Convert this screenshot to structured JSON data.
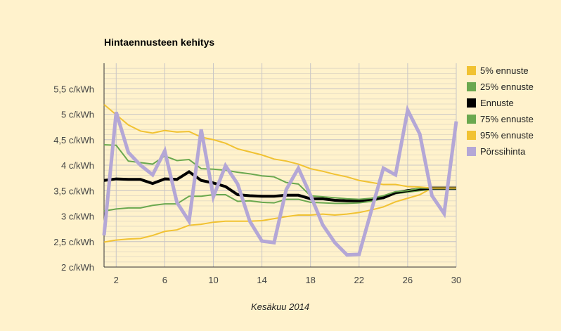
{
  "chart_data": {
    "type": "line",
    "title": "Hintaennusteen kehitys",
    "xlabel": "Kesäkuu 2014",
    "ylabel": "",
    "xlim": [
      1,
      30
    ],
    "ylim": [
      2,
      6
    ],
    "xticks": [
      "2",
      "6",
      "10",
      "14",
      "18",
      "22",
      "26",
      "30"
    ],
    "xtick_values": [
      2,
      6,
      10,
      14,
      18,
      22,
      26,
      30
    ],
    "yticks": [
      "2 c/kWh",
      "2,5 c/kWh",
      "3 c/kWh",
      "3,5 c/kWh",
      "4 c/kWh",
      "4,5 c/kWh",
      "5 c/kWh",
      "5,5 c/kWh"
    ],
    "ytick_values": [
      2,
      2.5,
      3,
      3.5,
      4,
      4.5,
      5,
      5.5
    ],
    "grid": true,
    "legend_position": "right",
    "x": [
      1,
      2,
      3,
      4,
      5,
      6,
      7,
      8,
      9,
      10,
      11,
      12,
      13,
      14,
      15,
      16,
      17,
      18,
      19,
      20,
      21,
      22,
      23,
      24,
      25,
      26,
      27,
      28,
      29,
      30
    ],
    "series": [
      {
        "name": "5% ennuste",
        "color": "#f1c232",
        "width": 2,
        "values": [
          2.49,
          2.53,
          2.55,
          2.56,
          2.62,
          2.7,
          2.73,
          2.82,
          2.84,
          2.88,
          2.9,
          2.9,
          2.9,
          2.91,
          2.95,
          2.99,
          3.02,
          3.02,
          3.04,
          3.02,
          3.04,
          3.07,
          3.12,
          3.18,
          3.28,
          3.35,
          3.42,
          3.55,
          3.55,
          3.55
        ]
      },
      {
        "name": "25% ennuste",
        "color": "#6aa84f",
        "width": 2,
        "values": [
          3.1,
          3.14,
          3.16,
          3.16,
          3.21,
          3.24,
          3.24,
          3.39,
          3.39,
          3.42,
          3.42,
          3.29,
          3.3,
          3.27,
          3.26,
          3.33,
          3.33,
          3.27,
          3.26,
          3.25,
          3.25,
          3.26,
          3.29,
          3.35,
          3.44,
          3.47,
          3.5,
          3.53,
          3.53,
          3.53
        ]
      },
      {
        "name": "Ennuste",
        "color": "#000000",
        "width": 4,
        "values": [
          3.7,
          3.73,
          3.72,
          3.72,
          3.64,
          3.73,
          3.72,
          3.87,
          3.7,
          3.65,
          3.58,
          3.42,
          3.4,
          3.39,
          3.39,
          3.41,
          3.41,
          3.34,
          3.34,
          3.31,
          3.3,
          3.3,
          3.33,
          3.36,
          3.46,
          3.5,
          3.53,
          3.55,
          3.55,
          3.55
        ]
      },
      {
        "name": "75% ennuste",
        "color": "#6aa84f",
        "width": 2,
        "values": [
          4.4,
          4.39,
          4.08,
          4.05,
          4.02,
          4.18,
          4.09,
          4.11,
          3.93,
          3.92,
          3.9,
          3.86,
          3.83,
          3.79,
          3.77,
          3.66,
          3.63,
          3.4,
          3.38,
          3.36,
          3.34,
          3.33,
          3.35,
          3.4,
          3.48,
          3.5,
          3.55,
          3.55,
          3.55,
          3.55
        ]
      },
      {
        "name": "95% ennuste",
        "color": "#f1c232",
        "width": 2,
        "values": [
          5.19,
          4.99,
          4.79,
          4.67,
          4.63,
          4.68,
          4.65,
          4.66,
          4.55,
          4.5,
          4.43,
          4.32,
          4.26,
          4.2,
          4.12,
          4.08,
          4.02,
          3.93,
          3.88,
          3.82,
          3.77,
          3.7,
          3.66,
          3.62,
          3.62,
          3.58,
          3.57,
          3.55,
          3.55,
          3.55
        ]
      },
      {
        "name": "Pörssihinta",
        "color": "#b4a7d6",
        "width": 5,
        "values": [
          2.62,
          5.04,
          4.25,
          4.0,
          3.81,
          4.28,
          3.27,
          2.9,
          4.7,
          3.38,
          3.99,
          3.63,
          2.9,
          2.51,
          2.48,
          3.52,
          3.94,
          3.41,
          2.83,
          2.48,
          2.24,
          2.25,
          3.1,
          3.94,
          3.81,
          5.08,
          4.61,
          3.4,
          3.05,
          4.86
        ]
      }
    ]
  }
}
